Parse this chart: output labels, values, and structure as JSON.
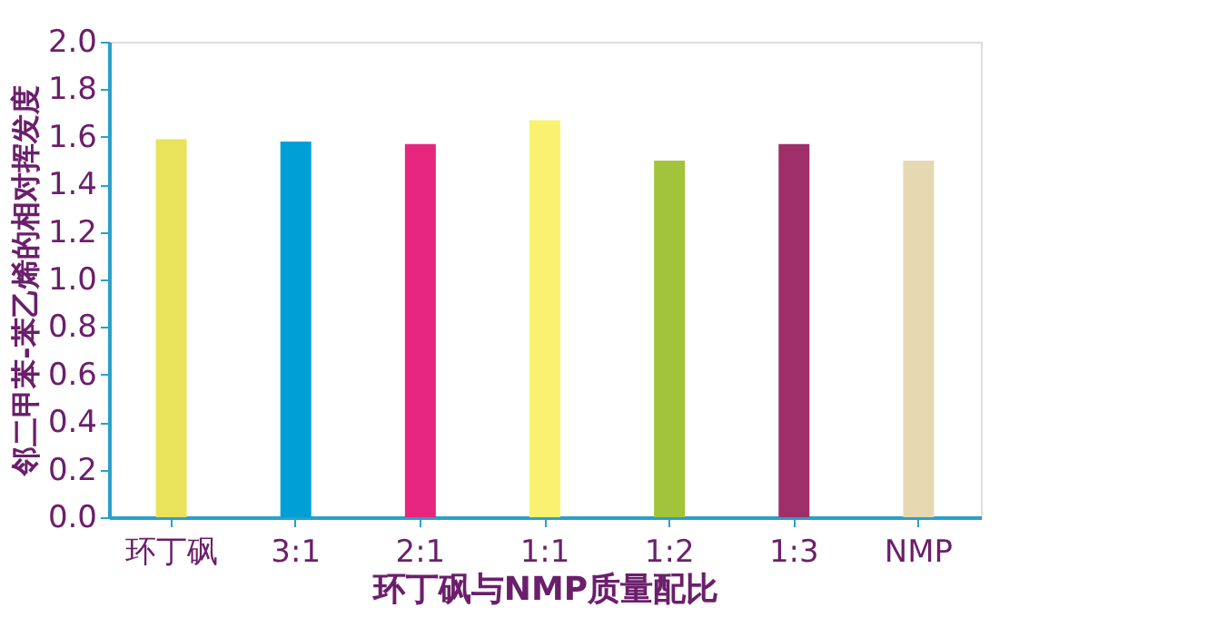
{
  "chart_data": {
    "type": "bar",
    "xlabel": "环丁砜与NMP质量配比",
    "ylabel": "邻二甲苯-苯乙烯的相对挥发度",
    "categories": [
      "环丁砜",
      "3:1",
      "2:1",
      "1:1",
      "1:2",
      "1:3",
      "NMP"
    ],
    "values": [
      1.59,
      1.58,
      1.57,
      1.67,
      1.5,
      1.57,
      1.5
    ],
    "colors": [
      "#e8e35a",
      "#00a0d6",
      "#e6267e",
      "#fbf170",
      "#a2c43a",
      "#9e2f6a",
      "#e6d8b0"
    ],
    "ylim": [
      0,
      2.0
    ],
    "yticks": [
      {
        "value": 0,
        "label": "0.0"
      },
      {
        "value": 0.2,
        "label": "0.2"
      },
      {
        "value": 0.4,
        "label": "0.4"
      },
      {
        "value": 0.6,
        "label": "0.6"
      },
      {
        "value": 0.8,
        "label": "0.8"
      },
      {
        "value": 1.0,
        "label": "1.0"
      },
      {
        "value": 1.2,
        "label": "1.2"
      },
      {
        "value": 1.4,
        "label": "1.4"
      },
      {
        "value": 1.6,
        "label": "1.6"
      },
      {
        "value": 1.8,
        "label": "1.8"
      },
      {
        "value": 2.0,
        "label": "2.0"
      }
    ],
    "grid": false,
    "legend": false
  }
}
